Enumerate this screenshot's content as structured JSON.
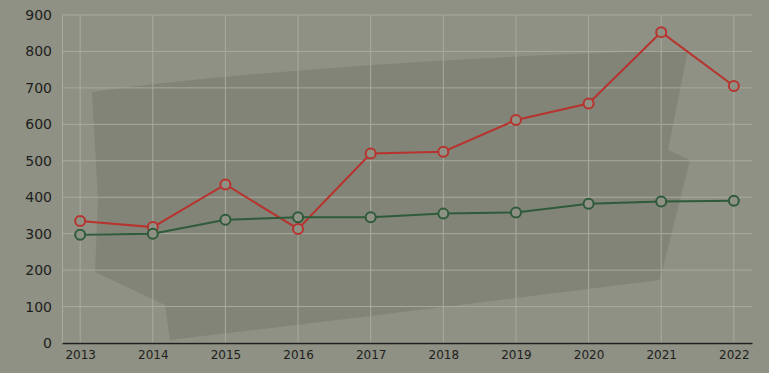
{
  "chart_data": {
    "type": "line",
    "categories": [
      "2013",
      "2014",
      "2015",
      "2016",
      "2017",
      "2018",
      "2019",
      "2020",
      "2021",
      "2022"
    ],
    "series": [
      {
        "color": "#b8332e",
        "marker": "circle",
        "values": [
          335,
          318,
          435,
          313,
          520,
          525,
          612,
          657,
          853,
          705
        ]
      },
      {
        "color": "#2f5b3a",
        "marker": "circle",
        "values": [
          297,
          300,
          338,
          345,
          345,
          355,
          358,
          382,
          388,
          390
        ]
      }
    ],
    "ylim": [
      0,
      900
    ],
    "yticks": [
      0,
      100,
      200,
      300,
      400,
      500,
      600,
      700,
      800,
      900
    ],
    "grid": true
  }
}
